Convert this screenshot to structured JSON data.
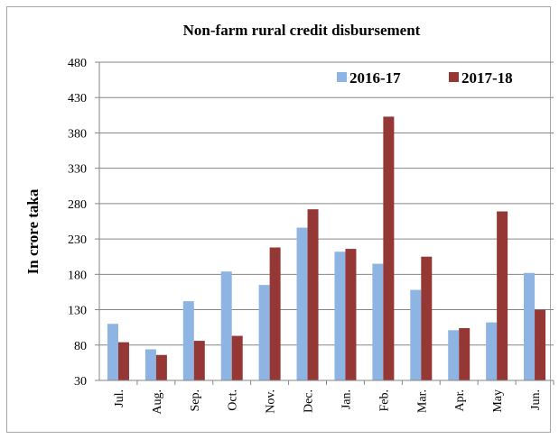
{
  "chart_data": {
    "type": "bar",
    "title": "Non-farm rural credit disbursement",
    "xlabel": "",
    "ylabel": "In crore taka",
    "categories": [
      "Jul.",
      "Aug.",
      "Sep.",
      "Oct.",
      "Nov.",
      "Dec.",
      "Jan.",
      "Feb.",
      "Mar.",
      "Apr.",
      "May",
      "Jun."
    ],
    "series": [
      {
        "name": "2016-17",
        "color": "#8eb4e3",
        "values": [
          110,
          74,
          142,
          184,
          165,
          246,
          212,
          195,
          158,
          101,
          112,
          182
        ]
      },
      {
        "name": "2017-18",
        "color": "#953735",
        "values": [
          84,
          66,
          86,
          93,
          218,
          272,
          216,
          403,
          205,
          104,
          269,
          130
        ]
      }
    ],
    "ylim": [
      30,
      480
    ],
    "yticks": [
      "30",
      "80",
      "130",
      "180",
      "230",
      "280",
      "330",
      "380",
      "430",
      "480"
    ],
    "grid": true,
    "legend_position": "top-right"
  }
}
